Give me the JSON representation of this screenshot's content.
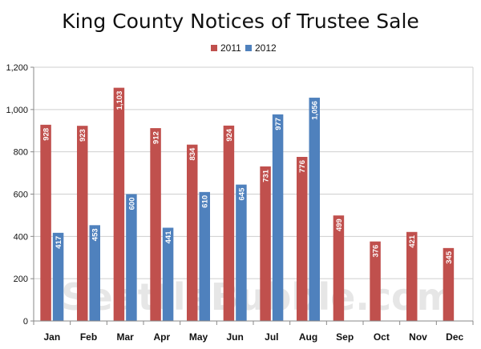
{
  "chart_data": {
    "type": "bar",
    "title": "King County Notices of Trustee Sale",
    "categories": [
      "Jan",
      "Feb",
      "Mar",
      "Apr",
      "May",
      "Jun",
      "Jul",
      "Aug",
      "Sep",
      "Oct",
      "Nov",
      "Dec"
    ],
    "series": [
      {
        "name": "2011",
        "color": "#c0504d",
        "values": [
          928,
          923,
          1103,
          912,
          834,
          924,
          731,
          776,
          499,
          376,
          421,
          345
        ]
      },
      {
        "name": "2012",
        "color": "#4f81bd",
        "values": [
          417,
          453,
          600,
          441,
          610,
          645,
          977,
          1056,
          null,
          null,
          null,
          null
        ]
      }
    ],
    "yticks": [
      "0",
      "200",
      "400",
      "600",
      "800",
      "1,000",
      "1,200"
    ],
    "ylim": [
      0,
      1200
    ],
    "grid": true,
    "legend_position": "top",
    "watermark": "SeattleBubble.com"
  }
}
